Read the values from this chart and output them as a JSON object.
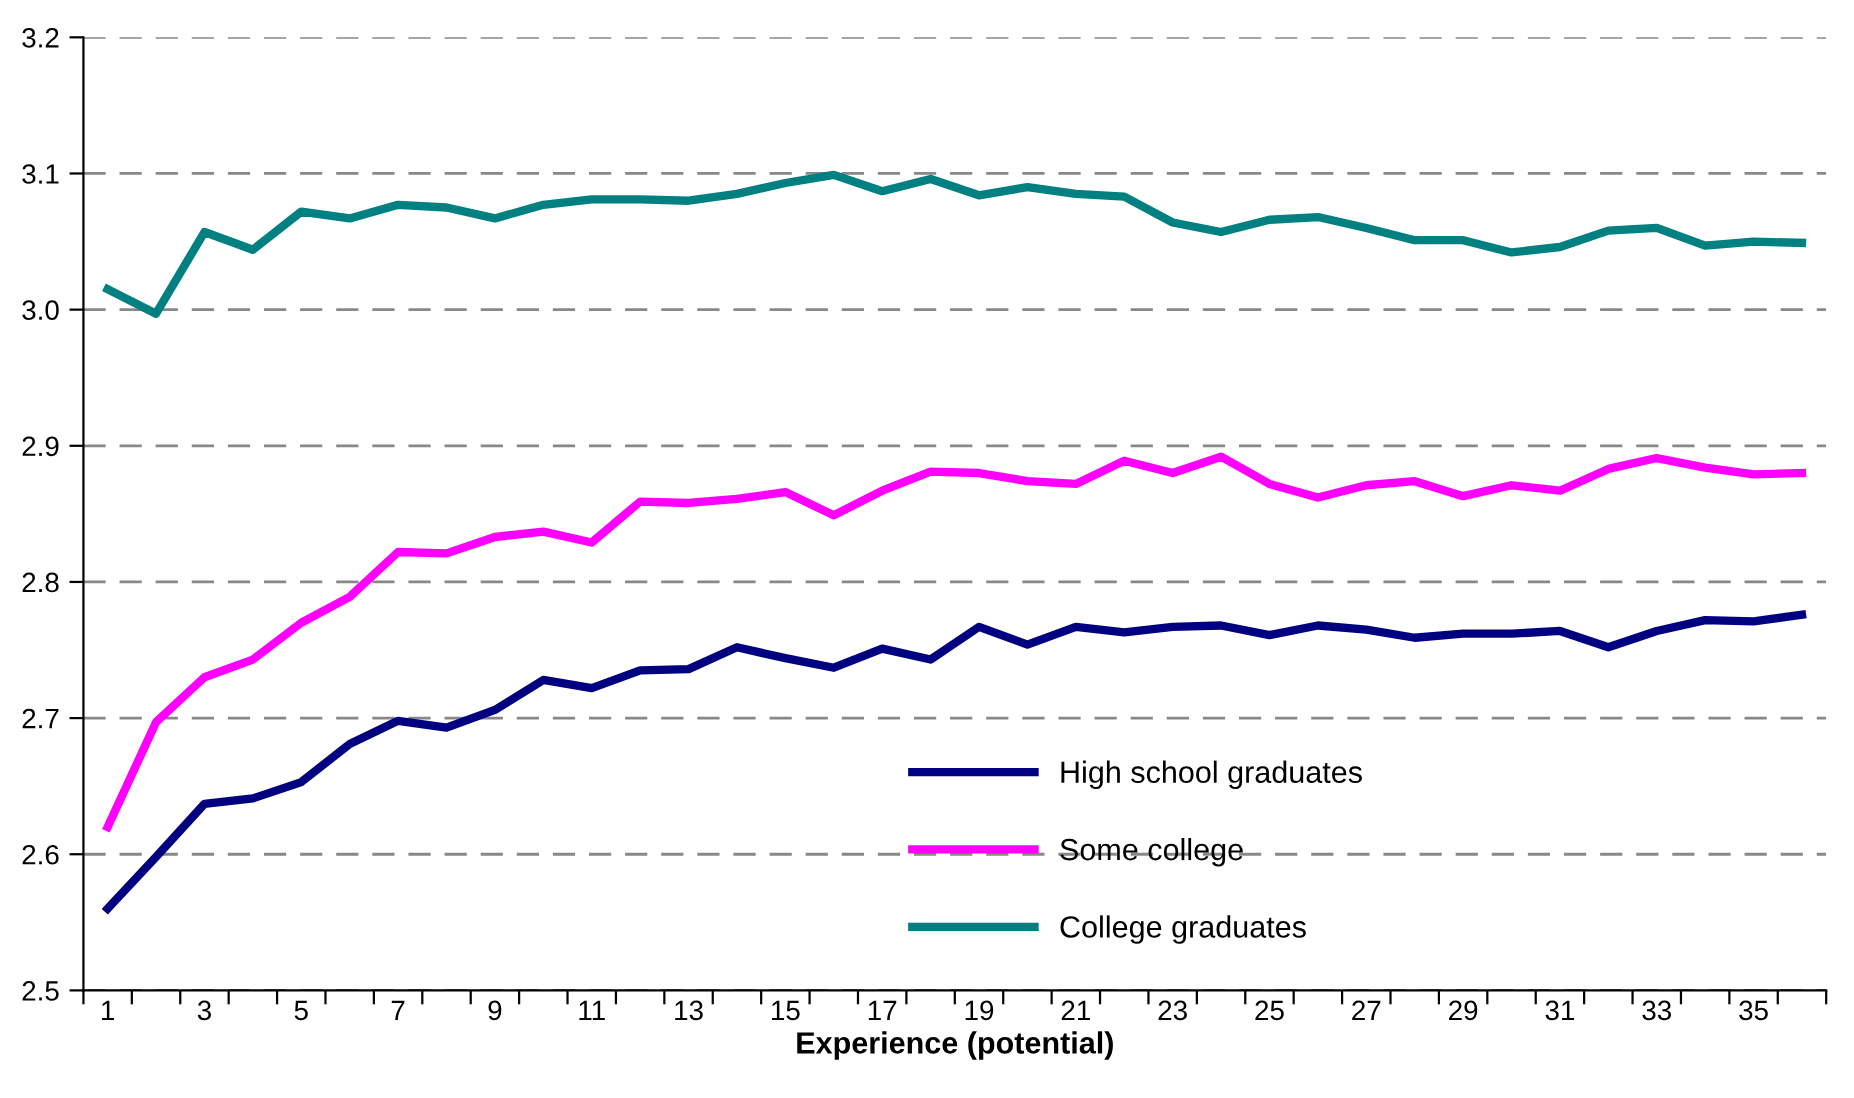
{
  "chart_data": {
    "type": "line",
    "xlabel": "Experience (potential)",
    "categories": [
      "1",
      null,
      "3",
      null,
      "5",
      null,
      "7",
      null,
      "9",
      null,
      "11",
      null,
      "13",
      null,
      "15",
      null,
      "17",
      null,
      "19",
      null,
      "21",
      null,
      "23",
      null,
      "25",
      null,
      "27",
      null,
      "29",
      null,
      "31",
      null,
      "33",
      null,
      "35",
      null
    ],
    "series": [
      {
        "name": "High school graduates",
        "color": "#000080",
        "values": [
          2.56,
          2.598,
          2.637,
          2.641,
          2.653,
          2.681,
          2.698,
          2.693,
          2.706,
          2.728,
          2.722,
          2.735,
          2.736,
          2.752,
          2.744,
          2.737,
          2.751,
          2.743,
          2.767,
          2.754,
          2.767,
          2.763,
          2.767,
          2.768,
          2.761,
          2.768,
          2.765,
          2.759,
          2.762,
          2.762,
          2.764,
          2.752,
          2.764,
          2.772,
          2.771,
          2.776
        ]
      },
      {
        "name": "Some college",
        "color": "#ff00ff",
        "values": [
          2.62,
          2.697,
          2.73,
          2.743,
          2.77,
          2.789,
          2.822,
          2.821,
          2.833,
          2.837,
          2.829,
          2.859,
          2.858,
          2.861,
          2.866,
          2.849,
          2.867,
          2.881,
          2.88,
          2.874,
          2.872,
          2.889,
          2.88,
          2.892,
          2.872,
          2.862,
          2.871,
          2.874,
          2.863,
          2.871,
          2.867,
          2.883,
          2.891,
          2.884,
          2.879,
          2.88
        ]
      },
      {
        "name": "College graduates",
        "color": "#008080",
        "values": [
          3.015,
          2.997,
          3.057,
          3.044,
          3.072,
          3.067,
          3.077,
          3.075,
          3.067,
          3.077,
          3.081,
          3.081,
          3.08,
          3.085,
          3.093,
          3.099,
          3.087,
          3.096,
          3.084,
          3.09,
          3.085,
          3.083,
          3.064,
          3.057,
          3.066,
          3.068,
          3.06,
          3.051,
          3.051,
          3.042,
          3.046,
          3.058,
          3.06,
          3.047,
          3.05,
          3.049
        ]
      }
    ],
    "ylim": [
      2.5,
      3.2
    ],
    "yticks": [
      2.5,
      2.6,
      2.7,
      2.8,
      2.9,
      {
        "value": 3,
        "label": "3.0"
      },
      3.1,
      3.2
    ],
    "grid": "y",
    "legend": "lower right",
    "marker": "none",
    "line_style": "solid"
  }
}
